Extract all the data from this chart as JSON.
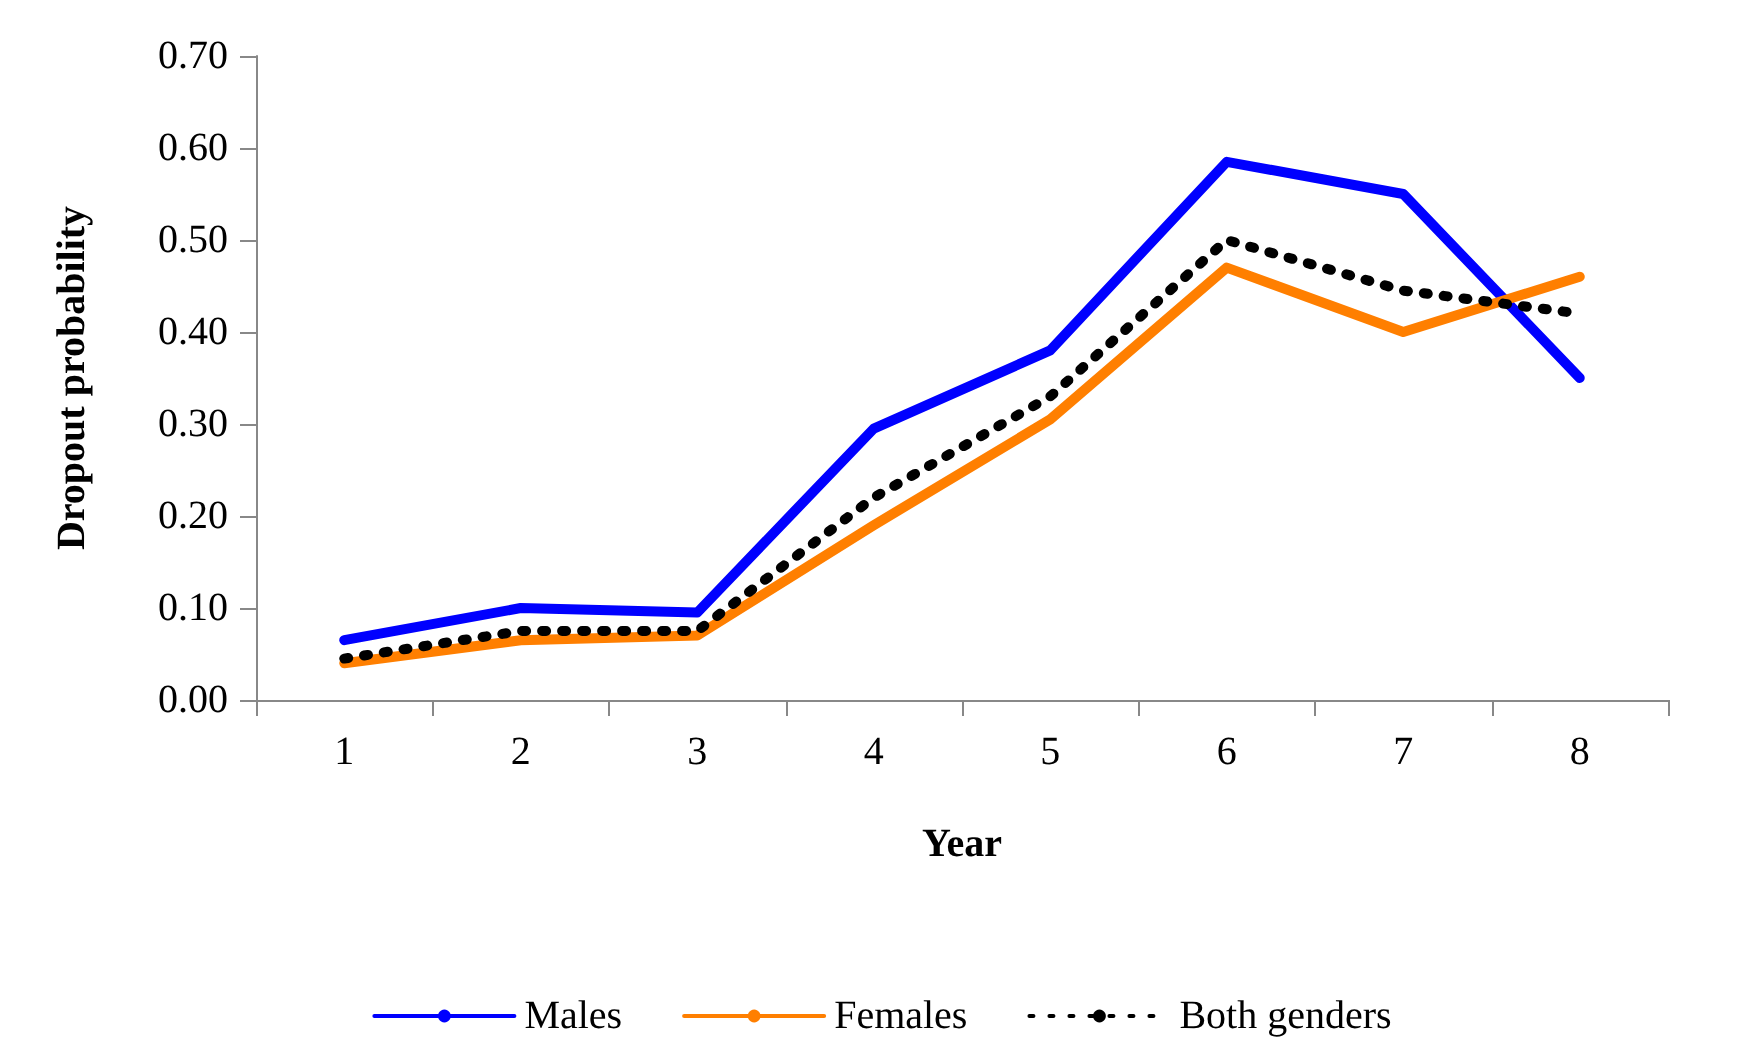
{
  "chart_data": {
    "type": "line",
    "xlabel": "Year",
    "ylabel": "Dropout probability",
    "categories": [
      "1",
      "2",
      "3",
      "4",
      "5",
      "6",
      "7",
      "8"
    ],
    "ylim": [
      0,
      0.7
    ],
    "yticks": [
      {
        "value": 0,
        "label": "0.00"
      },
      {
        "value": 0.1,
        "label": "0.10"
      },
      {
        "value": 0.2,
        "label": "0.20"
      },
      {
        "value": 0.3,
        "label": "0.30"
      },
      {
        "value": 0.4,
        "label": "0.40"
      },
      {
        "value": 0.5,
        "label": "0.50"
      },
      {
        "value": 0.6,
        "label": "0.60"
      },
      {
        "value": 0.7,
        "label": "0.70"
      }
    ],
    "grid": false,
    "legend": "bottom",
    "marker": "none",
    "series": [
      {
        "name": "Males",
        "color": "#0000ff",
        "line_style": "solid",
        "values": [
          0.065,
          0.1,
          0.095,
          0.295,
          0.38,
          0.585,
          0.55,
          0.35
        ]
      },
      {
        "name": "Females",
        "color": "#ff7f00",
        "line_style": "solid",
        "values": [
          0.04,
          0.065,
          0.07,
          0.19,
          0.305,
          0.47,
          0.4,
          0.46
        ]
      },
      {
        "name": "Both genders",
        "color": "#000000",
        "line_style": "dotted",
        "values": [
          0.045,
          0.075,
          0.075,
          0.22,
          0.33,
          0.5,
          0.445,
          0.42
        ]
      }
    ]
  }
}
